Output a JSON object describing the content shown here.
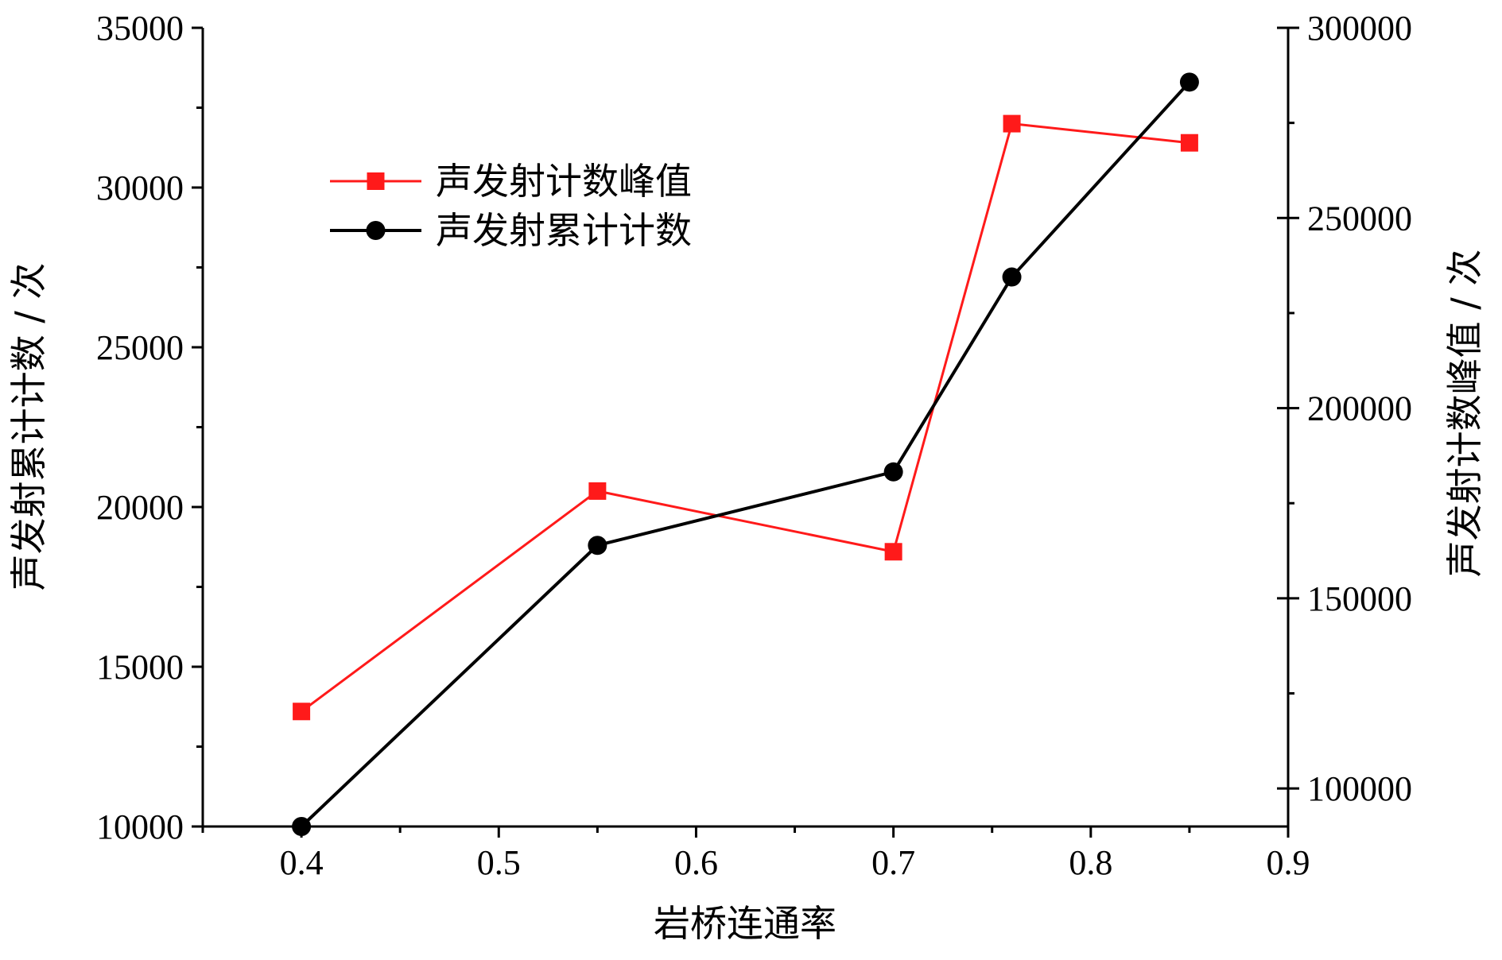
{
  "chart_data": {
    "type": "line",
    "xlabel": "岩桥连通率",
    "ylabel_left": "声发射累计计数 / 次",
    "ylabel_right": "声发射计数峰值 / 次",
    "xlim": [
      0.35,
      0.9
    ],
    "x_ticks": [
      0.4,
      0.5,
      0.6,
      0.7,
      0.8,
      0.9
    ],
    "x_tick_labels": [
      "0.4",
      "0.5",
      "0.6",
      "0.7",
      "0.8",
      "0.9"
    ],
    "ylim_left": [
      10000,
      35000
    ],
    "y_left_ticks": [
      10000,
      15000,
      20000,
      25000,
      30000,
      35000
    ],
    "y_left_tick_labels": [
      "10000",
      "15000",
      "20000",
      "25000",
      "30000",
      "35000"
    ],
    "ylim_right": [
      90000,
      300000
    ],
    "y_right_ticks": [
      100000,
      150000,
      200000,
      250000,
      300000
    ],
    "y_right_tick_labels": [
      "100000",
      "150000",
      "200000",
      "250000",
      "300000"
    ],
    "legend_position": "upper-left",
    "series": [
      {
        "name": "声发射计数峰值",
        "axis": "left",
        "color": "#ff1a1a",
        "marker": "square",
        "x": [
          0.4,
          0.55,
          0.7,
          0.76,
          0.85
        ],
        "values": [
          13600,
          20500,
          18600,
          32000,
          31400
        ]
      },
      {
        "name": "声发射累计计数",
        "axis": "left",
        "color": "#000000",
        "marker": "circle",
        "x": [
          0.4,
          0.55,
          0.7,
          0.76,
          0.85
        ],
        "values": [
          10000,
          18800,
          21100,
          27200,
          33300
        ]
      }
    ]
  }
}
